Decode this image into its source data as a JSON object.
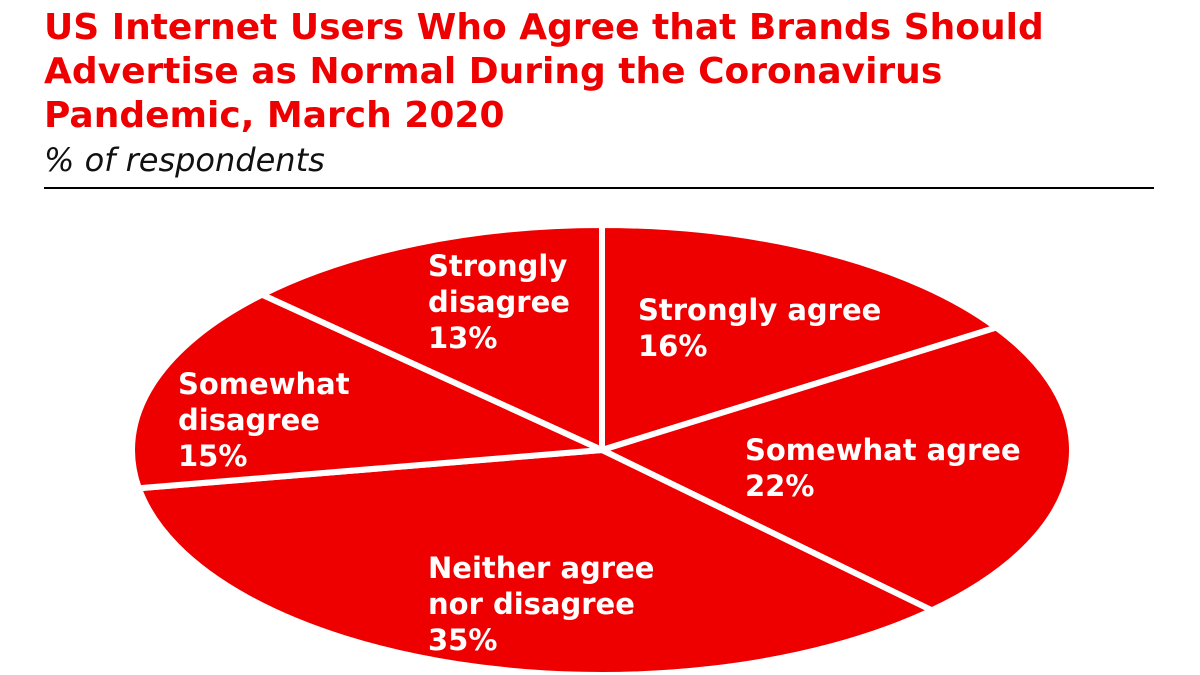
{
  "header": {
    "title": "US Internet Users Who Agree that Brands Should Advertise as Normal During the Coronavirus Pandemic, March 2020",
    "subtitle": "% of respondents"
  },
  "colors": {
    "accent": "#ee0000",
    "slice": "#ee0000",
    "separator": "#ffffff",
    "rule": "#000000"
  },
  "chart_data": {
    "type": "pie",
    "title": "US Internet Users Who Agree that Brands Should Advertise as Normal During the Coronavirus Pandemic, March 2020",
    "subtitle": "% of respondents",
    "legend": "none",
    "unit": "%",
    "slices": [
      {
        "label": [
          "Strongly agree"
        ],
        "value": 16,
        "value_text": "16%"
      },
      {
        "label": [
          "Somewhat agree"
        ],
        "value": 22,
        "value_text": "22%"
      },
      {
        "label": [
          "Neither agree",
          "nor disagree"
        ],
        "value": 35,
        "value_text": "35%"
      },
      {
        "label": [
          "Somewhat",
          "disagree"
        ],
        "value": 15,
        "value_text": "15%"
      },
      {
        "label": [
          "Strongly",
          "disagree"
        ],
        "value": 13,
        "value_text": "13%"
      }
    ]
  }
}
